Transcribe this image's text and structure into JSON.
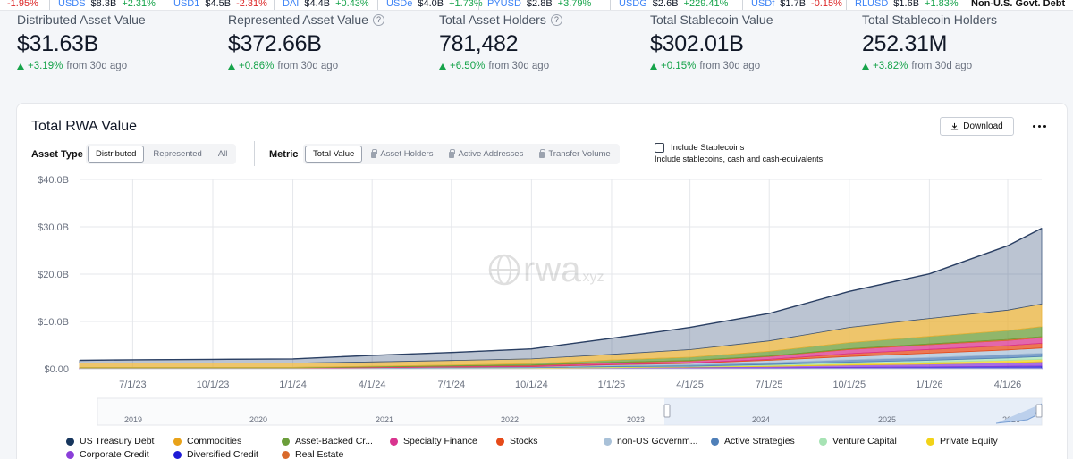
{
  "ticker": [
    {
      "sym": "",
      "val": "",
      "chg": "-1.95%",
      "dir": "dn"
    },
    {
      "sym": "USDS",
      "val": "$8.3B",
      "chg": "+2.31%",
      "dir": "up"
    },
    {
      "sym": "USD1",
      "val": "$4.5B",
      "chg": "-2.31%",
      "dir": "dn"
    },
    {
      "sym": "DAI",
      "val": "$4.4B",
      "chg": "+0.43%",
      "dir": "up"
    },
    {
      "sym": "USDe",
      "val": "$4.0B",
      "chg": "+1.73%",
      "dir": "up"
    },
    {
      "sym": "PYUSD",
      "val": "$2.8B",
      "chg": "+3.79%",
      "dir": "up"
    },
    {
      "sym": "USDG",
      "val": "$2.6B",
      "chg": "+229.41%",
      "dir": "up"
    },
    {
      "sym": "USDf",
      "val": "$1.7B",
      "chg": "-0.15%",
      "dir": "dn"
    },
    {
      "sym": "RLUSD",
      "val": "$1.6B",
      "chg": "+1.83%",
      "dir": "up"
    }
  ],
  "ticker_tail": "Non-U.S. Govt. Debt",
  "stats": [
    {
      "label": "Distributed Asset Value",
      "value": "$31.63B",
      "change": "+3.19%",
      "suffix": "from 30d ago",
      "info": false
    },
    {
      "label": "Represented Asset Value",
      "value": "$372.66B",
      "change": "+0.86%",
      "suffix": "from 30d ago",
      "info": true
    },
    {
      "label": "Total Asset Holders",
      "value": "781,482",
      "change": "+6.50%",
      "suffix": "from 30d ago",
      "info": true
    },
    {
      "label": "Total Stablecoin Value",
      "value": "$302.01B",
      "change": "+0.15%",
      "suffix": "from 30d ago",
      "info": false
    },
    {
      "label": "Total Stablecoin Holders",
      "value": "252.31M",
      "change": "+3.82%",
      "suffix": "from 30d ago",
      "info": false
    }
  ],
  "card": {
    "title": "Total RWA Value",
    "download": "Download",
    "asset_type_label": "Asset Type",
    "asset_type_options": [
      "Distributed",
      "Represented",
      "All"
    ],
    "metric_label": "Metric",
    "metric_options": [
      "Total Value",
      "Asset Holders",
      "Active Addresses",
      "Transfer Volume"
    ],
    "include_label": "Include Stablecoins",
    "include_sub": "Include stablecoins, cash and cash-equivalents",
    "watermark": "rwa",
    "watermark_suffix": ".xyz"
  },
  "chart_data": {
    "type": "area",
    "stacked": true,
    "y_tick_labels": [
      "$40.0B",
      "$30.0B",
      "$20.0B",
      "$10.0B",
      "$0.00"
    ],
    "ylim": [
      0,
      40
    ],
    "x_tick_labels": [
      "7/1/23",
      "10/1/23",
      "1/1/24",
      "4/1/24",
      "7/1/24",
      "10/1/24",
      "1/1/25",
      "4/1/25",
      "7/1/25",
      "10/1/25",
      "1/1/26",
      "4/1/26"
    ],
    "x": [
      "5/1/23",
      "7/1/23",
      "10/1/23",
      "1/1/24",
      "4/1/24",
      "7/1/24",
      "10/1/24",
      "1/1/25",
      "4/1/25",
      "7/1/25",
      "10/1/25",
      "1/1/26",
      "4/1/26",
      "5/10/26"
    ],
    "series": [
      {
        "name": "Diversified Credit",
        "color": "#1e1bd6",
        "values": [
          0.05,
          0.05,
          0.05,
          0.05,
          0.05,
          0.05,
          0.05,
          0.1,
          0.15,
          0.2,
          0.3,
          0.4,
          0.5,
          0.6
        ]
      },
      {
        "name": "Corporate Credit",
        "color": "#8b3fd9",
        "values": [
          0.05,
          0.05,
          0.05,
          0.05,
          0.05,
          0.05,
          0.1,
          0.15,
          0.2,
          0.3,
          0.5,
          0.6,
          0.8,
          0.9
        ]
      },
      {
        "name": "Private Equity",
        "color": "#f2d318",
        "values": [
          0.0,
          0.0,
          0.0,
          0.0,
          0.05,
          0.05,
          0.05,
          0.1,
          0.1,
          0.2,
          0.3,
          0.4,
          0.5,
          0.5
        ]
      },
      {
        "name": "Venture Capital",
        "color": "#a7e3b4",
        "values": [
          0.0,
          0.0,
          0.0,
          0.0,
          0.0,
          0.05,
          0.05,
          0.1,
          0.1,
          0.2,
          0.3,
          0.4,
          0.5,
          0.6
        ]
      },
      {
        "name": "Active Strategies",
        "color": "#4f7fb8",
        "values": [
          0.0,
          0.0,
          0.0,
          0.0,
          0.05,
          0.1,
          0.1,
          0.2,
          0.3,
          0.4,
          0.5,
          0.6,
          0.7,
          0.7
        ]
      },
      {
        "name": "non-US Government Debt",
        "color": "#a9c1d8",
        "values": [
          0.0,
          0.0,
          0.0,
          0.0,
          0.05,
          0.05,
          0.1,
          0.2,
          0.3,
          0.5,
          0.7,
          0.9,
          1.0,
          1.1
        ]
      },
      {
        "name": "Stocks",
        "color": "#e64a19",
        "values": [
          0.0,
          0.0,
          0.0,
          0.0,
          0.0,
          0.05,
          0.05,
          0.1,
          0.1,
          0.2,
          0.6,
          0.8,
          0.9,
          1.0
        ]
      },
      {
        "name": "Specialty Finance",
        "color": "#d9348f",
        "values": [
          0.05,
          0.05,
          0.05,
          0.05,
          0.1,
          0.15,
          0.2,
          0.3,
          0.4,
          0.6,
          0.9,
          1.0,
          1.1,
          1.2
        ]
      },
      {
        "name": "Real Estate",
        "color": "#d96a2b",
        "values": [
          0.05,
          0.05,
          0.05,
          0.05,
          0.05,
          0.05,
          0.1,
          0.1,
          0.1,
          0.1,
          0.15,
          0.15,
          0.2,
          0.2
        ]
      },
      {
        "name": "Asset-Backed Credit",
        "color": "#6b9e3a",
        "values": [
          0.1,
          0.1,
          0.1,
          0.1,
          0.15,
          0.2,
          0.3,
          0.5,
          0.7,
          1.0,
          1.3,
          1.6,
          1.9,
          2.1
        ]
      },
      {
        "name": "Commodities",
        "color": "#e8b23a",
        "values": [
          0.9,
          0.9,
          0.9,
          0.9,
          0.9,
          0.95,
          1.0,
          1.2,
          1.6,
          2.2,
          3.2,
          3.8,
          4.3,
          4.8
        ]
      },
      {
        "name": "US Treasury Debt",
        "color": "#3b557e",
        "values": [
          0.6,
          0.7,
          0.8,
          0.9,
          1.4,
          1.7,
          2.1,
          3.4,
          4.7,
          5.8,
          7.6,
          9.4,
          13.6,
          16.0
        ]
      }
    ],
    "navigator_years": [
      "2019",
      "2020",
      "2021",
      "2022",
      "2023",
      "2024",
      "2025",
      "2026"
    ]
  },
  "legend": [
    {
      "label": "US Treasury Debt",
      "color": "#17365d"
    },
    {
      "label": "Commodities",
      "color": "#e8a21a"
    },
    {
      "label": "Asset-Backed Cr...",
      "color": "#6b9e3a"
    },
    {
      "label": "Specialty Finance",
      "color": "#d9348f"
    },
    {
      "label": "Stocks",
      "color": "#e64a19"
    },
    {
      "label": "non-US Governm...",
      "color": "#a9c1d8"
    },
    {
      "label": "Active Strategies",
      "color": "#4f7fb8"
    },
    {
      "label": "Venture Capital",
      "color": "#a7e3b4"
    },
    {
      "label": "Private Equity",
      "color": "#f2d318"
    },
    {
      "label": "Corporate Credit",
      "color": "#8b3fd9"
    },
    {
      "label": "Diversified Credit",
      "color": "#1e1bd6"
    },
    {
      "label": "Real Estate",
      "color": "#d96a2b"
    }
  ]
}
